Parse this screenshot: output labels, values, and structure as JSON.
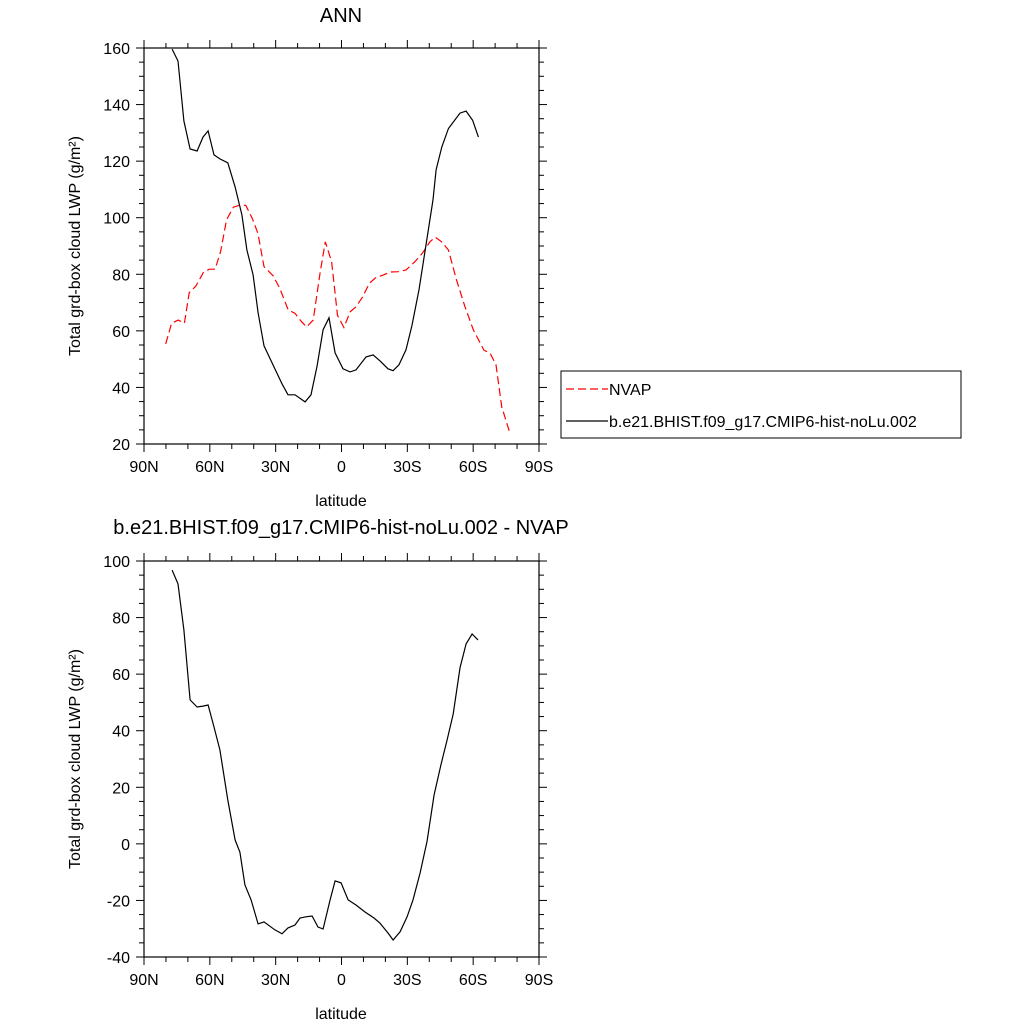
{
  "chart_data": [
    {
      "type": "line",
      "title": "ANN",
      "xlabel": "latitude",
      "ylabel": "Total grd-box cloud LWP (g/m²)",
      "xlim": [
        90,
        -90
      ],
      "ylim": [
        20,
        160
      ],
      "xticks": [
        90,
        60,
        30,
        0,
        -30,
        -60,
        -90
      ],
      "xtick_labels": [
        "90N",
        "60N",
        "30N",
        "0",
        "30S",
        "60S",
        "90S"
      ],
      "yticks": [
        20,
        40,
        60,
        80,
        100,
        120,
        140,
        160
      ],
      "ytick_labels": [
        "20",
        "40",
        "60",
        "80",
        "100",
        "120",
        "140",
        "160"
      ],
      "legend": "right",
      "series": [
        {
          "name": "NVAP",
          "color": "#ff0000",
          "style": "dashed",
          "x": [
            80.1,
            77.4,
            74.4,
            71.6,
            69.4,
            66.3,
            63.0,
            60.3,
            57.6,
            55.1,
            52.4,
            49.3,
            46.6,
            43.6,
            40.7,
            38.1,
            35.3,
            31.1,
            28.1,
            24.3,
            21.2,
            18.2,
            15.9,
            12.9,
            9.8,
            7.4,
            4.5,
            1.8,
            -1.1,
            -3.9,
            -6.6,
            -9.6,
            -12.7,
            -15.7,
            -19.0,
            -22.1,
            -25.9,
            -29.4,
            -33.5,
            -37.0,
            -40.3,
            -42.7,
            -45.6,
            -48.7,
            -52.4,
            -56.3,
            -60.1,
            -64.9,
            -67.7,
            -70.4,
            -73.0,
            -76.5
          ],
          "y": [
            55.4,
            62.7,
            63.8,
            62.7,
            73.5,
            75.9,
            80.6,
            81.8,
            81.8,
            88.0,
            99.2,
            103.7,
            104.4,
            104.4,
            99.8,
            94.5,
            82.7,
            79.4,
            75.0,
            67.4,
            66.2,
            63.2,
            61.4,
            63.8,
            80.3,
            91.5,
            84.5,
            65.5,
            61.2,
            66.7,
            68.5,
            72.0,
            76.8,
            78.9,
            79.7,
            80.8,
            80.9,
            81.5,
            84.5,
            87.6,
            91.5,
            93.1,
            91.5,
            88.6,
            78.0,
            68.5,
            60.3,
            53.2,
            52.1,
            48.0,
            33.2,
            24.4
          ]
        },
        {
          "name": "b.e21.BHIST.f09_g17.CMIP6-hist-noLu.002",
          "color": "#000000",
          "style": "solid",
          "x": [
            77.2,
            74.5,
            71.8,
            69.0,
            65.8,
            63.1,
            60.8,
            58.1,
            55.4,
            51.8,
            48.5,
            45.4,
            43.1,
            40.3,
            38.0,
            35.3,
            30.8,
            27.1,
            24.4,
            21.2,
            16.6,
            13.9,
            11.1,
            8.4,
            5.7,
            2.9,
            -0.7,
            -3.9,
            -6.6,
            -11.2,
            -14.4,
            -17.5,
            -21.2,
            -23.5,
            -26.2,
            -29.4,
            -32.1,
            -35.3,
            -38.5,
            -41.7,
            -43.1,
            -45.7,
            -48.7,
            -54.0,
            -56.8,
            -59.8,
            -62.4
          ],
          "y": [
            159.6,
            155.4,
            134.2,
            124.3,
            123.6,
            128.5,
            130.7,
            122.2,
            120.8,
            119.4,
            110.9,
            101.0,
            88.6,
            79.8,
            66.4,
            54.7,
            47.3,
            41.3,
            37.4,
            37.4,
            34.9,
            37.4,
            47.6,
            60.4,
            64.6,
            52.2,
            46.6,
            45.5,
            46.2,
            50.8,
            51.5,
            49.4,
            46.6,
            45.9,
            48.0,
            53.3,
            61.8,
            74.5,
            90.4,
            106.3,
            116.9,
            125.0,
            131.5,
            137.0,
            137.7,
            134.4,
            128.5
          ]
        }
      ]
    },
    {
      "type": "line",
      "title": "b.e21.BHIST.f09_g17.CMIP6-hist-noLu.002 - NVAP",
      "xlabel": "latitude",
      "ylabel": "Total grd-box cloud LWP (g/m²)",
      "xlim": [
        90,
        -90
      ],
      "ylim": [
        -40,
        100
      ],
      "xticks": [
        90,
        60,
        30,
        0,
        -30,
        -60,
        -90
      ],
      "xtick_labels": [
        "90N",
        "60N",
        "30N",
        "0",
        "30S",
        "60S",
        "90S"
      ],
      "yticks": [
        -40,
        -20,
        0,
        20,
        40,
        60,
        80,
        100
      ],
      "ytick_labels": [
        "-40",
        "-20",
        "0",
        "20",
        "40",
        "60",
        "80",
        "100"
      ],
      "series": [
        {
          "color": "#000000",
          "style": "solid",
          "x": [
            77.2,
            74.5,
            71.8,
            69.0,
            65.8,
            63.1,
            60.8,
            58.1,
            55.4,
            51.8,
            48.5,
            46.3,
            44.0,
            41.2,
            38.0,
            35.3,
            30.4,
            27.1,
            24.4,
            21.2,
            18.9,
            16.2,
            13.4,
            10.7,
            8.4,
            5.2,
            2.9,
            0.2,
            -3.0,
            -6.6,
            -10.7,
            -14.8,
            -17.5,
            -21.2,
            -23.5,
            -26.7,
            -29.9,
            -32.6,
            -35.8,
            -39.0,
            -42.2,
            -45.4,
            -48.1,
            -50.9,
            -54.0,
            -56.8,
            -59.5,
            -62.2
          ],
          "y": [
            96.8,
            91.9,
            75.6,
            50.9,
            48.4,
            48.7,
            49.1,
            41.3,
            33.2,
            15.5,
            1.4,
            -2.9,
            -14.5,
            -19.8,
            -28.3,
            -27.6,
            -30.4,
            -31.8,
            -29.7,
            -28.7,
            -26.2,
            -25.8,
            -25.5,
            -29.4,
            -30.1,
            -19.8,
            -13.1,
            -13.8,
            -19.8,
            -21.6,
            -24.1,
            -26.2,
            -28.0,
            -31.5,
            -34.0,
            -31.1,
            -25.8,
            -19.8,
            -10.3,
            1.0,
            17.3,
            28.2,
            36.7,
            45.9,
            62.2,
            70.7,
            74.2,
            72.1
          ]
        }
      ]
    }
  ]
}
